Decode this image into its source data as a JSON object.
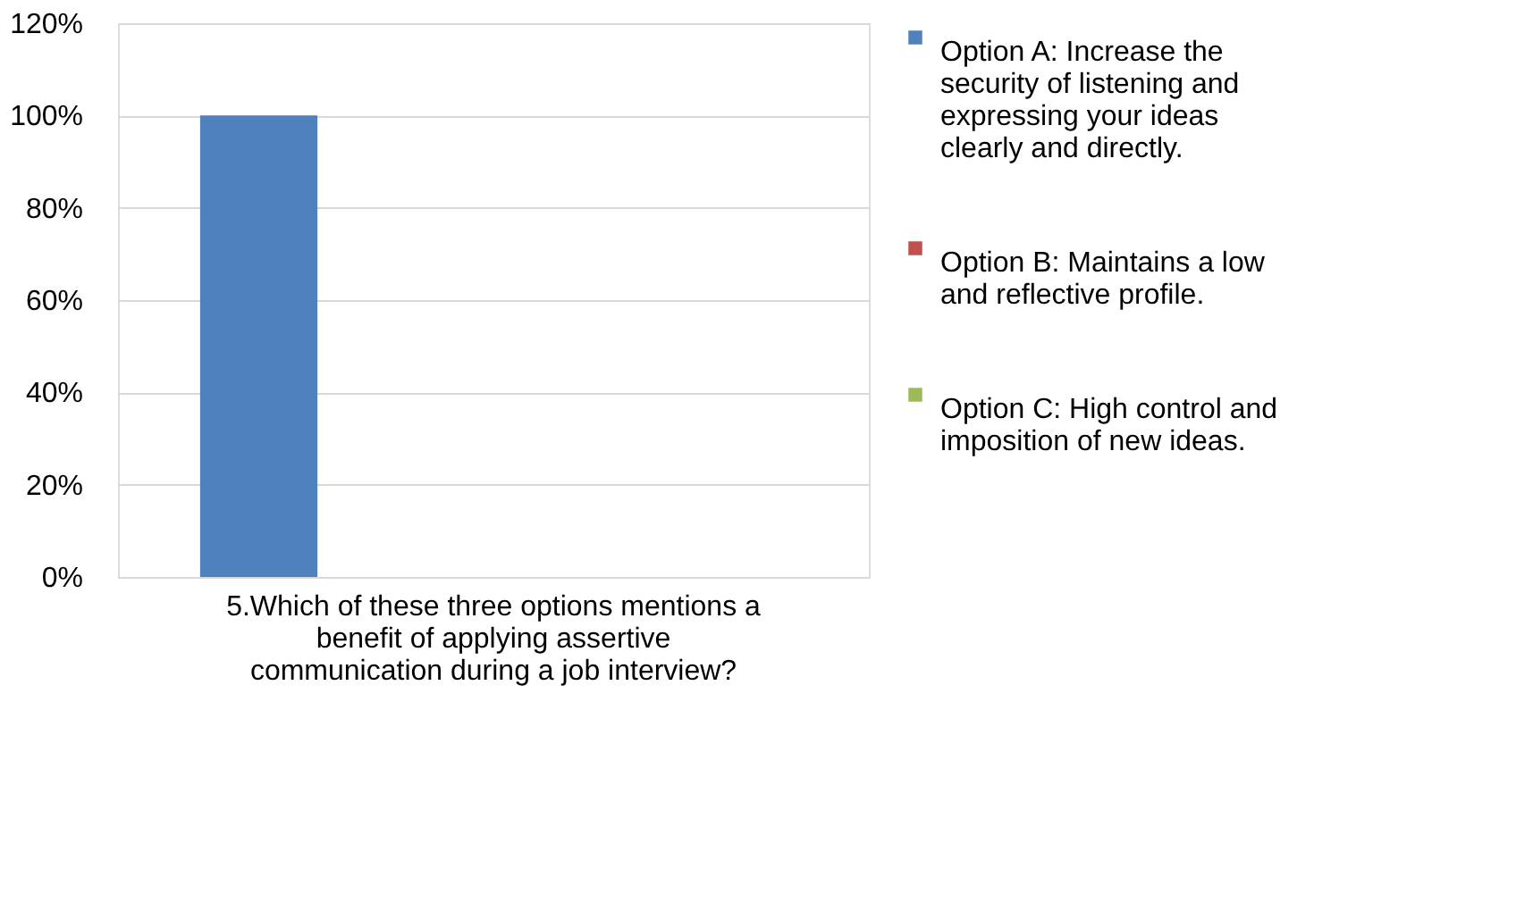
{
  "chart_data": {
    "type": "bar",
    "categories": [
      "5.Which of these three options mentions a benefit of applying assertive communication during a job interview?"
    ],
    "series": [
      {
        "name": "Option A: Increase the security of listening and expressing your ideas clearly and directly.",
        "color": "#4f81bd",
        "values": [
          100
        ]
      },
      {
        "name": "Option B: Maintains a low and reflective profile.",
        "color": "#c0504d",
        "values": [
          0
        ]
      },
      {
        "name": "Option C: High control and imposition of new ideas.",
        "color": "#9bbb59",
        "values": [
          0
        ]
      }
    ],
    "ylim": [
      0,
      120
    ],
    "yticks": [
      {
        "value": 0,
        "label": "0%"
      },
      {
        "value": 20,
        "label": "20%"
      },
      {
        "value": 40,
        "label": "40%"
      },
      {
        "value": 60,
        "label": "60%"
      },
      {
        "value": 80,
        "label": "80%"
      },
      {
        "value": 100,
        "label": "100%"
      },
      {
        "value": 120,
        "label": "120%"
      }
    ],
    "grid": "y",
    "legend": "right"
  }
}
